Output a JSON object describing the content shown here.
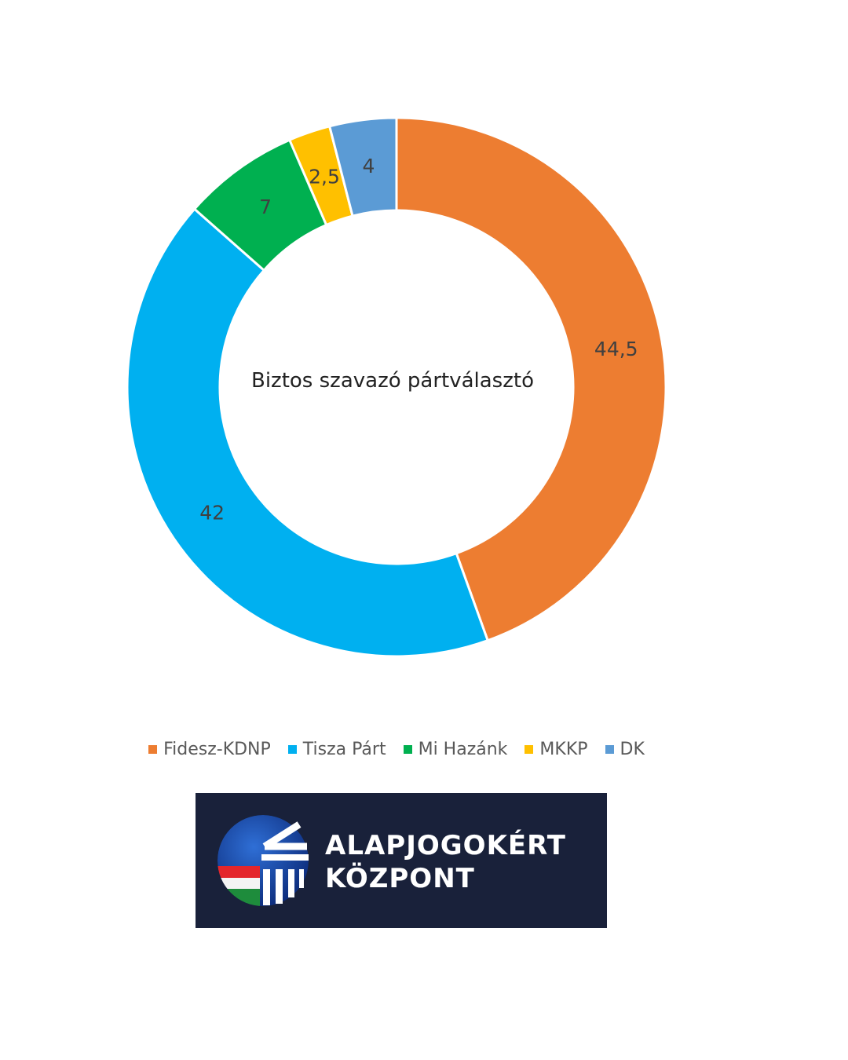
{
  "chart_data": {
    "type": "pie",
    "variant": "donut",
    "center_label": "Biztos szavazó pártválasztó",
    "categories": [
      "Fidesz-KDNP",
      "Tisza Párt",
      "Mi Hazánk",
      "MKKP",
      "DK"
    ],
    "values": [
      44.5,
      42,
      7,
      2.5,
      4
    ],
    "data_labels": [
      "44,5",
      "42",
      "7",
      "2,5",
      "4"
    ],
    "colors": [
      "#ED7D31",
      "#00B0F0",
      "#00B050",
      "#FFC000",
      "#5B9BD5"
    ],
    "legend_position": "bottom",
    "start_angle": "top, clockwise"
  },
  "logo": {
    "line1": "ALAPJOGOKÉRT",
    "line2": "KÖZPONT"
  }
}
